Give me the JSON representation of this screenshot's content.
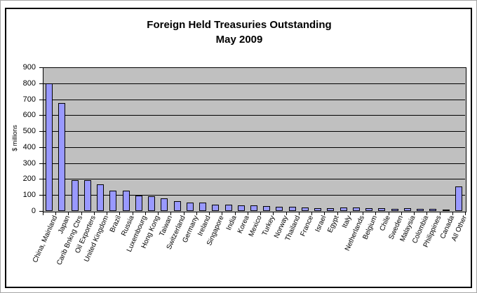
{
  "chart_data": {
    "type": "bar",
    "title": "Foreign Held Treasuries Outstanding",
    "subtitle": "May 2009",
    "xlabel": "",
    "ylabel": "$ millions",
    "ylim": [
      0,
      900
    ],
    "ytick_interval": 100,
    "grid": true,
    "legend": "none",
    "plot_bg_color": "#c0c0c0",
    "bar_fill_color": "#9999ff",
    "bar_border_color": "#000000",
    "categories": [
      "China, Mainland",
      "Japan",
      "Carib Bnkng Ctrs",
      "Oil Exporters",
      "United Kingdom",
      "Brazil",
      "Russia",
      "Luxembourg",
      "Hong Kong",
      "Taiwan",
      "Switzerland",
      "Germany",
      "Ireland",
      "Singapore",
      "India",
      "Korea",
      "Mexico",
      "Turkey",
      "Norway",
      "Thailand",
      "France",
      "Israel",
      "Egypt",
      "Italy",
      "Netherlands",
      "Belgium",
      "Chile",
      "Sweden",
      "Malaysia",
      "Colombia",
      "Philippines",
      "Canada",
      "All Other"
    ],
    "values": [
      800,
      677,
      195,
      192,
      165,
      128,
      126,
      95,
      93,
      78,
      63,
      54,
      51,
      40,
      38,
      37,
      35,
      29,
      26,
      26,
      22,
      17,
      18,
      20,
      21,
      16,
      18,
      15,
      19,
      12,
      13,
      9,
      155
    ]
  }
}
